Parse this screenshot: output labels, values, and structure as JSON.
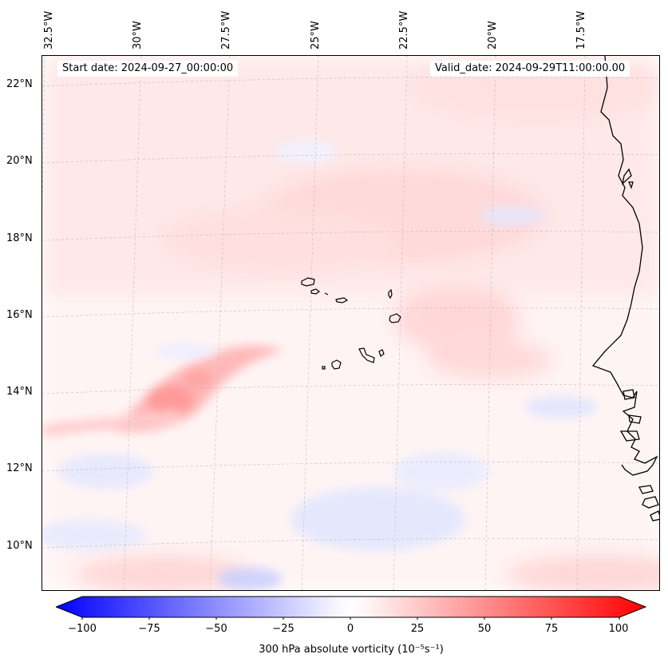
{
  "map": {
    "start_date": "Start date: 2024-09-27_00:00:00",
    "valid_date": "Valid_date: 2024-09-29T11:00:00.00",
    "longitude_labels": [
      "32.5°W",
      "30°W",
      "27.5°W",
      "25°W",
      "22.5°W",
      "20°W",
      "17.5°W"
    ],
    "latitude_labels": [
      "22°N",
      "20°N",
      "18°N",
      "16°N",
      "14°N",
      "12°N",
      "10°N"
    ],
    "field_colors": {
      "negative": "#0000ff",
      "neutral": "#ffffff",
      "positive": "#ff0000"
    }
  },
  "colorbar": {
    "ticks": [
      "−100",
      "−75",
      "−50",
      "−25",
      "0",
      "25",
      "50",
      "75",
      "100"
    ],
    "label": "300 hPa absolute vorticity (10⁻⁵s⁻¹)"
  }
}
